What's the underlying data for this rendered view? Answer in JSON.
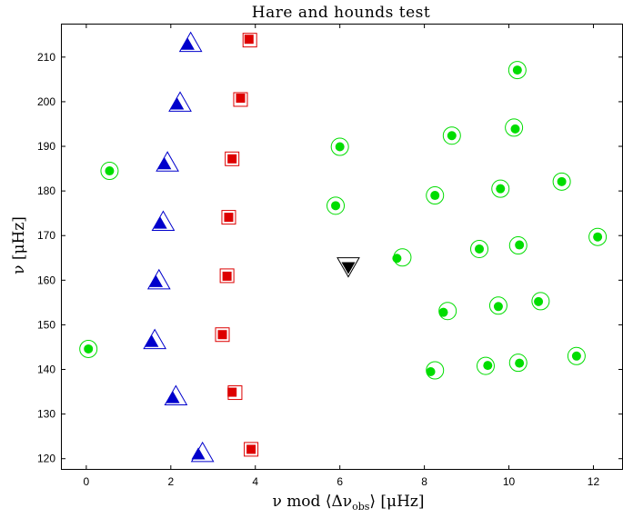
{
  "chart_data": {
    "type": "scatter",
    "title": "Hare and hounds test",
    "xlabel": "ν mod ⟨Δν_obs⟩ [μHz]",
    "xlabel_parts": {
      "main": "ν mod ⟨Δν",
      "sub": "obs",
      "tail": "⟩ [μHz]"
    },
    "ylabel": "ν [μHz]",
    "xlim": [
      -0.6,
      12.7
    ],
    "ylim": [
      117.5,
      217.5
    ],
    "xticks": [
      0,
      2,
      4,
      6,
      8,
      10,
      12
    ],
    "yticks": [
      120,
      130,
      140,
      150,
      160,
      170,
      180,
      190,
      200,
      210
    ],
    "grid": false,
    "legend": "none",
    "series": [
      {
        "marker": "triangle-up",
        "color": "#0000cc",
        "points": [
          {
            "x": 2.65,
            "y": 121.0,
            "rx": 2.75,
            "ry": 121.2
          },
          {
            "x": 2.05,
            "y": 133.6,
            "rx": 2.12,
            "ry": 133.9
          },
          {
            "x": 1.55,
            "y": 146.2,
            "rx": 1.62,
            "ry": 146.5
          },
          {
            "x": 1.65,
            "y": 159.6,
            "rx": 1.72,
            "ry": 159.9
          },
          {
            "x": 1.75,
            "y": 172.7,
            "rx": 1.82,
            "ry": 173.0
          },
          {
            "x": 1.85,
            "y": 186.0,
            "rx": 1.92,
            "ry": 186.3
          },
          {
            "x": 2.15,
            "y": 199.4,
            "rx": 2.22,
            "ry": 199.7
          },
          {
            "x": 2.4,
            "y": 212.8,
            "rx": 2.47,
            "ry": 213.1
          }
        ]
      },
      {
        "marker": "square",
        "color": "#dd0000",
        "points": [
          {
            "x": 3.9,
            "y": 122.1,
            "rx": 3.9,
            "ry": 122.1
          },
          {
            "x": 3.45,
            "y": 134.9,
            "rx": 3.52,
            "ry": 134.8
          },
          {
            "x": 3.22,
            "y": 147.8,
            "rx": 3.22,
            "ry": 147.8
          },
          {
            "x": 3.33,
            "y": 160.9,
            "rx": 3.33,
            "ry": 161.0
          },
          {
            "x": 3.37,
            "y": 174.1,
            "rx": 3.37,
            "ry": 174.1
          },
          {
            "x": 3.45,
            "y": 187.2,
            "rx": 3.45,
            "ry": 187.2
          },
          {
            "x": 3.65,
            "y": 200.8,
            "rx": 3.65,
            "ry": 200.5
          },
          {
            "x": 3.85,
            "y": 214.0,
            "rx": 3.87,
            "ry": 213.8
          }
        ]
      },
      {
        "marker": "circle",
        "color": "#00dd00",
        "points": [
          {
            "x": 0.05,
            "y": 144.6,
            "rx": 0.05,
            "ry": 144.6
          },
          {
            "x": 0.55,
            "y": 184.5,
            "rx": 0.55,
            "ry": 184.5
          },
          {
            "x": 5.9,
            "y": 176.7,
            "rx": 5.9,
            "ry": 176.7
          },
          {
            "x": 6.0,
            "y": 189.9,
            "rx": 6.0,
            "ry": 189.9
          },
          {
            "x": 7.35,
            "y": 164.9,
            "rx": 7.48,
            "ry": 165.1
          },
          {
            "x": 8.15,
            "y": 139.5,
            "rx": 8.25,
            "ry": 139.8
          },
          {
            "x": 8.45,
            "y": 152.8,
            "rx": 8.55,
            "ry": 153.1
          },
          {
            "x": 8.25,
            "y": 179.0,
            "rx": 8.25,
            "ry": 179.0
          },
          {
            "x": 8.65,
            "y": 192.4,
            "rx": 8.65,
            "ry": 192.4
          },
          {
            "x": 9.3,
            "y": 167.0,
            "rx": 9.3,
            "ry": 167.0
          },
          {
            "x": 9.5,
            "y": 140.9,
            "rx": 9.45,
            "ry": 140.8
          },
          {
            "x": 9.75,
            "y": 154.1,
            "rx": 9.75,
            "ry": 154.3
          },
          {
            "x": 9.8,
            "y": 180.5,
            "rx": 9.8,
            "ry": 180.5
          },
          {
            "x": 10.25,
            "y": 141.4,
            "rx": 10.22,
            "ry": 141.5
          },
          {
            "x": 10.25,
            "y": 167.9,
            "rx": 10.22,
            "ry": 167.8
          },
          {
            "x": 10.15,
            "y": 193.9,
            "rx": 10.12,
            "ry": 194.2
          },
          {
            "x": 10.2,
            "y": 207.1,
            "rx": 10.2,
            "ry": 207.1
          },
          {
            "x": 10.7,
            "y": 155.2,
            "rx": 10.75,
            "ry": 155.3
          },
          {
            "x": 11.25,
            "y": 182.1,
            "rx": 11.25,
            "ry": 182.1
          },
          {
            "x": 11.6,
            "y": 143.0,
            "rx": 11.6,
            "ry": 143.0
          },
          {
            "x": 12.1,
            "y": 169.7,
            "rx": 12.1,
            "ry": 169.7
          }
        ]
      },
      {
        "marker": "triangle-down",
        "color": "#000000",
        "points": [
          {
            "x": 6.2,
            "y": 162.9,
            "rx": 6.2,
            "ry": 163.2
          }
        ]
      }
    ]
  }
}
